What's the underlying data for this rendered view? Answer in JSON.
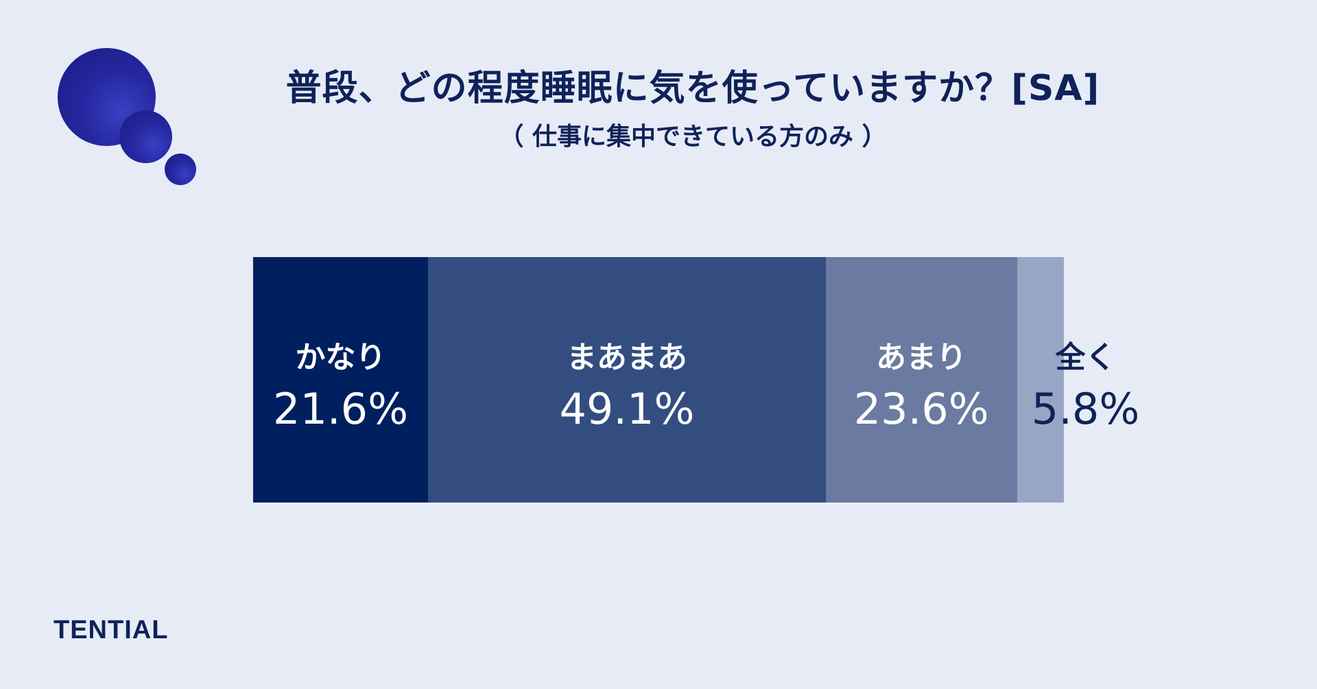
{
  "title": "普段、どの程度睡眠に気を使っていますか？[SA]",
  "subtitle": "（ 仕事に集中できている方のみ ）",
  "logo": "TENTIAL",
  "chart_data": {
    "type": "bar",
    "stacked": true,
    "orientation": "horizontal",
    "title": "普段、どの程度睡眠に気を使っていますか？[SA]",
    "subtitle": "（ 仕事に集中できている方のみ ）",
    "categories": [
      "かなり",
      "まあまあ",
      "あまり",
      "全く"
    ],
    "values": [
      21.6,
      49.1,
      23.6,
      5.8
    ],
    "value_labels": [
      "21.6%",
      "49.1%",
      "23.6%",
      "5.8%"
    ],
    "colors": [
      "#001f5f",
      "#334d80",
      "#6a7aa0",
      "#98a6c5"
    ],
    "label_colors": [
      "#ffffff",
      "#ffffff",
      "#ffffff",
      "#0f2259"
    ],
    "legend": "none",
    "grid": false
  }
}
